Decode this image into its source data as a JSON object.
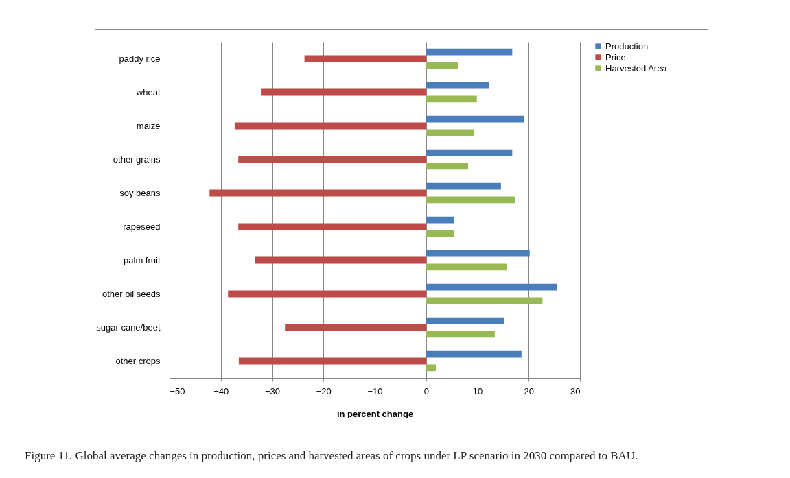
{
  "chart_data": {
    "type": "bar",
    "orientation": "horizontal",
    "xlabel": "in percent change",
    "categories": [
      "paddy rice",
      "wheat",
      "maize",
      "other grains",
      "soy beans",
      "rapeseed",
      "palm fruit",
      "other oil seeds",
      "sugar cane/beet",
      "other crops"
    ],
    "series": [
      {
        "name": "Production",
        "color": "#4a7ebb",
        "values": [
          16.8,
          12.3,
          19.1,
          16.8,
          14.6,
          5.5,
          20.2,
          25.5,
          15.2,
          18.6
        ]
      },
      {
        "name": "Price",
        "color": "#be4b48",
        "values": [
          -23.7,
          -32.2,
          -37.3,
          -36.6,
          -42.2,
          -36.6,
          -33.3,
          -38.6,
          -27.5,
          -36.5
        ]
      },
      {
        "name": "Harvested Area",
        "color": "#98b954",
        "values": [
          6.3,
          9.9,
          9.4,
          8.2,
          17.4,
          5.5,
          15.8,
          22.7,
          13.4,
          1.9
        ]
      }
    ],
    "xlim": [
      -50,
      30
    ],
    "xticks": [
      -50,
      -40,
      -30,
      -20,
      -10,
      0,
      10,
      20,
      30
    ],
    "grid": "x",
    "legend": "right",
    "annotations": [
      "Figure 11. Global average changes in production, prices and harvested areas of crops under LP scenario in 2030 compared to BAU."
    ]
  }
}
